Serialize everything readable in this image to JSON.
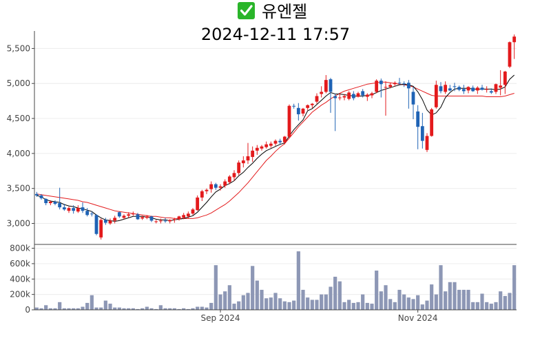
{
  "header": {
    "status_icon": "check-mark-icon",
    "status_color": "#2ab52a",
    "title": "유엔젤",
    "subtitle": "2024-12-11 17:57"
  },
  "colors": {
    "up": "#e31a1c",
    "down": "#1f63b5",
    "ma_short": "#000000",
    "ma_long": "#e31a1c",
    "volume": "#8d97b5",
    "axis": "#444444",
    "grid": "#ececec"
  },
  "chart_data": [
    {
      "type": "candlestick",
      "name": "price",
      "ylim": [
        2700,
        5750
      ],
      "yticks": [
        3000,
        3500,
        4000,
        4500,
        5000,
        5500
      ],
      "ytick_labels": [
        "3,000",
        "3,500",
        "4,000",
        "4,500",
        "5,000",
        "5,500"
      ],
      "grid": true,
      "candles": [
        [
          3420,
          3450,
          3380,
          3400
        ],
        [
          3400,
          3420,
          3340,
          3360
        ],
        [
          3350,
          3360,
          3260,
          3290
        ],
        [
          3290,
          3330,
          3260,
          3310
        ],
        [
          3310,
          3330,
          3260,
          3280
        ],
        [
          3290,
          3510,
          3200,
          3230
        ],
        [
          3230,
          3280,
          3180,
          3200
        ],
        [
          3180,
          3240,
          3150,
          3220
        ],
        [
          3220,
          3260,
          3140,
          3180
        ],
        [
          3170,
          3260,
          3150,
          3220
        ],
        [
          3230,
          3300,
          3150,
          3180
        ],
        [
          3180,
          3220,
          3100,
          3120
        ],
        [
          3140,
          3170,
          3100,
          3130
        ],
        [
          3120,
          3130,
          2830,
          2850
        ],
        [
          2800,
          3070,
          2770,
          3050
        ],
        [
          3050,
          3080,
          2980,
          3010
        ],
        [
          3000,
          3070,
          2980,
          3040
        ],
        [
          3040,
          3110,
          3000,
          3080
        ],
        [
          3160,
          3170,
          3080,
          3100
        ],
        [
          3080,
          3130,
          3060,
          3110
        ],
        [
          3110,
          3160,
          3080,
          3130
        ],
        [
          3130,
          3170,
          3110,
          3140
        ],
        [
          3130,
          3150,
          3050,
          3060
        ],
        [
          3070,
          3110,
          3050,
          3090
        ],
        [
          3080,
          3120,
          3060,
          3100
        ],
        [
          3100,
          3110,
          3020,
          3040
        ],
        [
          3030,
          3050,
          3000,
          3030
        ],
        [
          3030,
          3070,
          3000,
          3040
        ],
        [
          3040,
          3080,
          3010,
          3030
        ],
        [
          3030,
          3060,
          3000,
          3050
        ],
        [
          3050,
          3080,
          3010,
          3060
        ],
        [
          3060,
          3110,
          3040,
          3100
        ],
        [
          3080,
          3150,
          3060,
          3120
        ],
        [
          3100,
          3170,
          3070,
          3140
        ],
        [
          3140,
          3220,
          3120,
          3200
        ],
        [
          3190,
          3400,
          3180,
          3370
        ],
        [
          3370,
          3480,
          3320,
          3460
        ],
        [
          3460,
          3500,
          3420,
          3480
        ],
        [
          3490,
          3600,
          3440,
          3560
        ],
        [
          3560,
          3580,
          3480,
          3510
        ],
        [
          3510,
          3560,
          3470,
          3530
        ],
        [
          3540,
          3630,
          3510,
          3600
        ],
        [
          3590,
          3690,
          3560,
          3670
        ],
        [
          3660,
          3760,
          3610,
          3720
        ],
        [
          3720,
          3900,
          3690,
          3870
        ],
        [
          3860,
          3960,
          3800,
          3900
        ],
        [
          3900,
          4150,
          3850,
          3960
        ],
        [
          3950,
          4100,
          3880,
          4040
        ],
        [
          4040,
          4120,
          3980,
          4080
        ],
        [
          4070,
          4120,
          4040,
          4100
        ],
        [
          4090,
          4170,
          4070,
          4130
        ],
        [
          4110,
          4170,
          4080,
          4140
        ],
        [
          4140,
          4200,
          4110,
          4180
        ],
        [
          4180,
          4210,
          4130,
          4160
        ],
        [
          4160,
          4250,
          4130,
          4240
        ],
        [
          4240,
          4700,
          4230,
          4680
        ],
        [
          4680,
          4710,
          4640,
          4670
        ],
        [
          4650,
          4720,
          4470,
          4560
        ],
        [
          4570,
          4650,
          4530,
          4640
        ],
        [
          4650,
          4700,
          4620,
          4690
        ],
        [
          4690,
          4720,
          4650,
          4710
        ],
        [
          4740,
          4860,
          4710,
          4820
        ],
        [
          4850,
          4960,
          4800,
          4880
        ],
        [
          4880,
          5120,
          4860,
          5050
        ],
        [
          5060,
          5080,
          4580,
          4880
        ],
        [
          4820,
          4850,
          4320,
          4790
        ],
        [
          4790,
          4860,
          4760,
          4800
        ],
        [
          4800,
          4850,
          4760,
          4820
        ],
        [
          4780,
          4890,
          4760,
          4870
        ],
        [
          4850,
          4890,
          4760,
          4790
        ],
        [
          4810,
          4880,
          4800,
          4860
        ],
        [
          4890,
          4920,
          4800,
          4830
        ],
        [
          4810,
          4860,
          4750,
          4840
        ],
        [
          4830,
          4880,
          4790,
          4860
        ],
        [
          4880,
          5060,
          4860,
          5040
        ],
        [
          5040,
          5070,
          4800,
          4990
        ],
        [
          4950,
          5030,
          4540,
          4950
        ],
        [
          4950,
          5010,
          4930,
          4980
        ],
        [
          4990,
          5030,
          4960,
          5010
        ],
        [
          5010,
          5080,
          4980,
          5000
        ],
        [
          5000,
          5030,
          4950,
          4990
        ],
        [
          5010,
          5050,
          4640,
          4930
        ],
        [
          4880,
          4950,
          4490,
          4700
        ],
        [
          4600,
          4690,
          4060,
          4380
        ],
        [
          4390,
          4580,
          4070,
          4180
        ],
        [
          4050,
          4290,
          4020,
          4250
        ],
        [
          4250,
          4650,
          4240,
          4630
        ],
        [
          4660,
          5040,
          4640,
          4980
        ],
        [
          4960,
          5020,
          4860,
          4890
        ],
        [
          4880,
          5030,
          4850,
          4980
        ],
        [
          4930,
          4980,
          4890,
          4900
        ],
        [
          4960,
          5010,
          4890,
          4950
        ],
        [
          4950,
          4970,
          4890,
          4910
        ],
        [
          4920,
          4980,
          4850,
          4890
        ],
        [
          4900,
          4960,
          4860,
          4950
        ],
        [
          4940,
          4970,
          4880,
          4890
        ],
        [
          4900,
          4960,
          4850,
          4940
        ],
        [
          4940,
          4980,
          4900,
          4910
        ],
        [
          4910,
          4960,
          4870,
          4920
        ],
        [
          4890,
          4930,
          4850,
          4870
        ],
        [
          4880,
          5000,
          4850,
          4990
        ],
        [
          4940,
          5190,
          4830,
          4970
        ],
        [
          4980,
          5180,
          4850,
          5170
        ],
        [
          5240,
          5600,
          5220,
          5590
        ],
        [
          5590,
          5700,
          5350,
          5670
        ]
      ],
      "ma_short": [
        3400,
        3380,
        3340,
        3320,
        3310,
        3300,
        3270,
        3250,
        3240,
        3220,
        3210,
        3190,
        3170,
        3120,
        3080,
        3050,
        3040,
        3030,
        3040,
        3060,
        3080,
        3100,
        3100,
        3100,
        3090,
        3080,
        3060,
        3050,
        3050,
        3040,
        3050,
        3060,
        3070,
        3090,
        3110,
        3160,
        3230,
        3300,
        3380,
        3450,
        3490,
        3540,
        3570,
        3610,
        3680,
        3730,
        3800,
        3860,
        3930,
        3990,
        4040,
        4070,
        4100,
        4130,
        4150,
        4250,
        4340,
        4410,
        4480,
        4610,
        4640,
        4700,
        4760,
        4820,
        4870,
        4850,
        4850,
        4840,
        4830,
        4820,
        4820,
        4820,
        4830,
        4840,
        4870,
        4900,
        4920,
        4940,
        4960,
        4980,
        4990,
        4980,
        4960,
        4880,
        4770,
        4620,
        4550,
        4580,
        4660,
        4800,
        4870,
        4920,
        4930,
        4930,
        4930,
        4920,
        4920,
        4920,
        4920,
        4920,
        4910,
        4920,
        4950,
        5060,
        5120
      ],
      "ma_long": [
        3420,
        3410,
        3400,
        3390,
        3380,
        3370,
        3360,
        3350,
        3340,
        3330,
        3310,
        3300,
        3280,
        3260,
        3240,
        3220,
        3200,
        3180,
        3170,
        3160,
        3150,
        3140,
        3130,
        3120,
        3110,
        3100,
        3100,
        3090,
        3080,
        3080,
        3070,
        3070,
        3070,
        3070,
        3070,
        3080,
        3100,
        3120,
        3150,
        3190,
        3230,
        3270,
        3320,
        3380,
        3440,
        3510,
        3580,
        3660,
        3740,
        3820,
        3900,
        3960,
        4030,
        4090,
        4140,
        4220,
        4300,
        4380,
        4450,
        4520,
        4590,
        4640,
        4690,
        4730,
        4780,
        4820,
        4860,
        4890,
        4910,
        4930,
        4950,
        4970,
        4990,
        5000,
        5010,
        5020,
        5020,
        5010,
        5000,
        4990,
        4980,
        4970,
        4950,
        4920,
        4890,
        4860,
        4830,
        4820,
        4820,
        4820,
        4820,
        4820,
        4820,
        4820,
        4820,
        4820,
        4820,
        4820,
        4810,
        4810,
        4810,
        4810,
        4820,
        4840,
        4860
      ]
    },
    {
      "type": "bar",
      "name": "volume",
      "ylim": [
        0,
        850000
      ],
      "yticks": [
        0,
        200000,
        400000,
        600000,
        800000
      ],
      "ytick_labels": [
        "0",
        "200k",
        "400k",
        "600k",
        "800k"
      ],
      "xtick_labels": [
        {
          "index": 40,
          "label": "Sep 2024"
        },
        {
          "index": 83,
          "label": "Nov 2024"
        }
      ],
      "values": [
        30000,
        20000,
        60000,
        20000,
        20000,
        100000,
        20000,
        20000,
        20000,
        20000,
        40000,
        90000,
        190000,
        30000,
        30000,
        120000,
        80000,
        30000,
        30000,
        20000,
        20000,
        20000,
        10000,
        20000,
        40000,
        20000,
        10000,
        60000,
        20000,
        20000,
        20000,
        10000,
        20000,
        10000,
        20000,
        40000,
        40000,
        30000,
        90000,
        580000,
        200000,
        240000,
        320000,
        80000,
        110000,
        190000,
        220000,
        570000,
        380000,
        260000,
        150000,
        160000,
        220000,
        150000,
        110000,
        100000,
        120000,
        760000,
        260000,
        160000,
        130000,
        130000,
        200000,
        200000,
        300000,
        430000,
        370000,
        100000,
        130000,
        90000,
        100000,
        200000,
        90000,
        80000,
        510000,
        240000,
        320000,
        140000,
        100000,
        260000,
        200000,
        160000,
        140000,
        190000,
        70000,
        120000,
        330000,
        200000,
        580000,
        240000,
        360000,
        360000,
        260000,
        260000,
        260000,
        100000,
        100000,
        210000,
        100000,
        80000,
        100000,
        240000,
        180000,
        220000,
        580000
      ]
    }
  ]
}
